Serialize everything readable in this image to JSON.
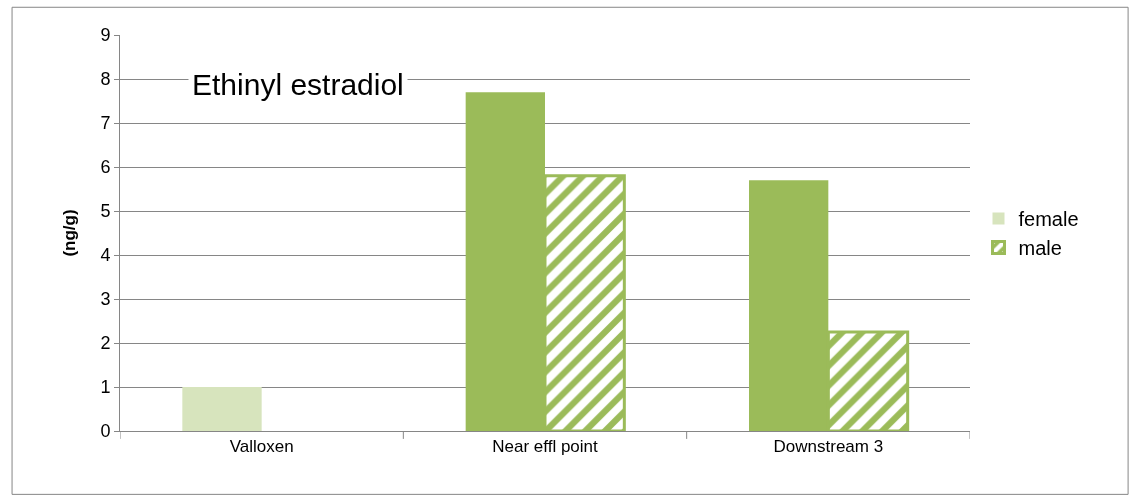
{
  "chart_data": {
    "type": "bar",
    "title": "Ethinyl estradiol",
    "ylabel": "(ng/g)",
    "categories": [
      "Valloxen",
      "Near effl point",
      "Downstream 3"
    ],
    "series": [
      {
        "name": "female",
        "color": "#9bbb59",
        "colors": [
          "#d7e4bd",
          "#9bbb59",
          "#9bbb59"
        ],
        "values": [
          1.0,
          7.7,
          5.7
        ]
      },
      {
        "name": "male",
        "color": "#9bbb59",
        "values": [
          null,
          5.8,
          2.25
        ]
      }
    ],
    "ylim": [
      0,
      9
    ],
    "yticks": [
      0,
      1,
      2,
      3,
      4,
      5,
      6,
      7,
      8,
      9
    ],
    "grid": "y",
    "legend": "right"
  }
}
